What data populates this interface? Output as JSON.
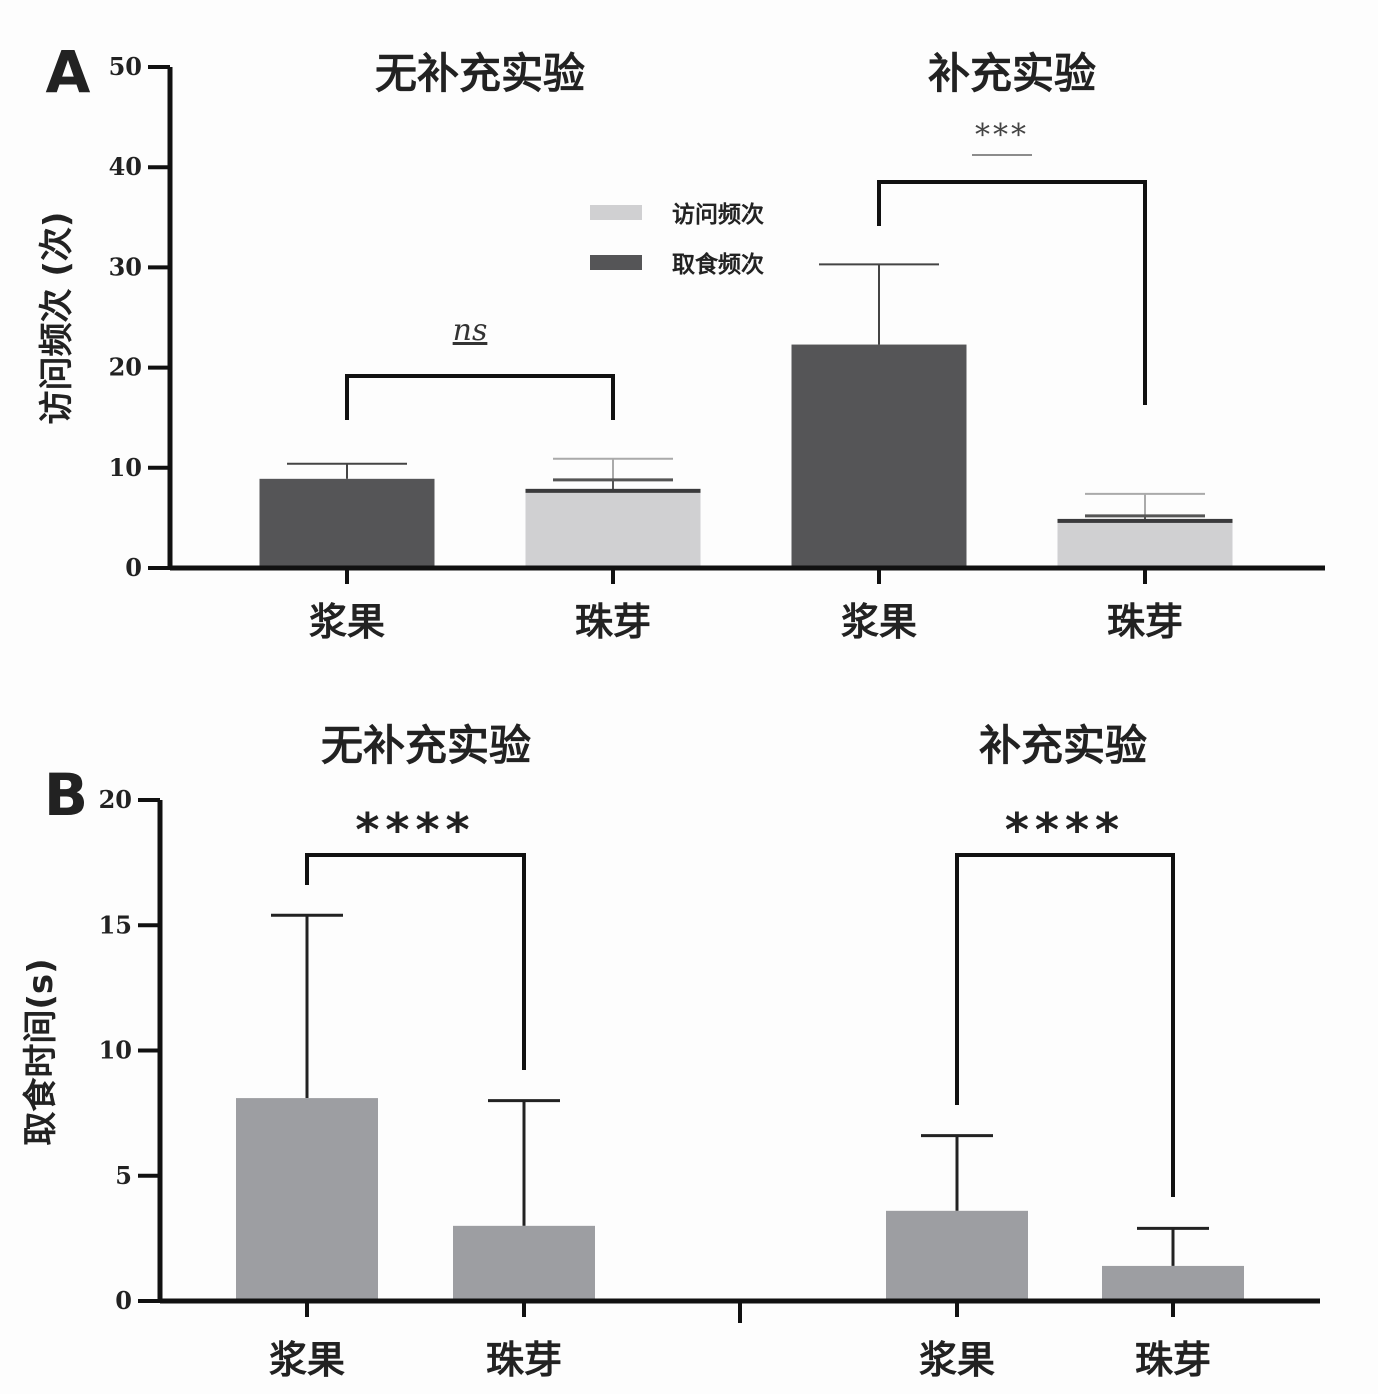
{
  "chart_data": [
    {
      "panel": "A",
      "type": "bar",
      "ylabel": "访问频次 (次)",
      "ylim": [
        0,
        50
      ],
      "yticks": [
        0,
        10,
        20,
        30,
        40,
        50
      ],
      "groups": [
        {
          "title": "无补充实验",
          "categories": [
            "浆果",
            "珠芽"
          ]
        },
        {
          "title": "补充实验",
          "categories": [
            "浆果",
            "珠芽"
          ]
        }
      ],
      "legend": {
        "position": "top-center",
        "entries": [
          {
            "name": "访问频次",
            "color": "#d0d0d2"
          },
          {
            "name": "取食频次",
            "color": "#555557"
          }
        ]
      },
      "series": [
        {
          "name": "访问频次",
          "values": [
            8.9,
            7.8,
            22.3,
            4.8
          ],
          "errors": [
            10.4,
            10.9,
            30.3,
            7.4
          ]
        },
        {
          "name": "取食频次",
          "values": [
            8.9,
            7.7,
            22.3,
            4.7
          ],
          "errors": [
            10.4,
            8.8,
            30.3,
            5.2
          ]
        }
      ],
      "annotations": [
        {
          "between": [
            0,
            1
          ],
          "label": "ns"
        },
        {
          "between": [
            2,
            3
          ],
          "label": "***"
        }
      ]
    },
    {
      "panel": "B",
      "type": "bar",
      "ylabel": "取食时间(s)",
      "ylim": [
        0,
        20
      ],
      "yticks": [
        0,
        5,
        10,
        15,
        20
      ],
      "groups": [
        {
          "title": "无补充实验",
          "categories": [
            "浆果",
            "珠芽"
          ]
        },
        {
          "title": "补充实验",
          "categories": [
            "浆果",
            "珠芽"
          ]
        }
      ],
      "series": [
        {
          "name": "取食时间",
          "color": "#9d9ea2",
          "values": [
            8.1,
            3.0,
            3.6,
            1.4
          ],
          "errors": [
            15.4,
            8.0,
            6.6,
            2.9
          ]
        }
      ],
      "annotations": [
        {
          "between": [
            0,
            1
          ],
          "label": "****"
        },
        {
          "between": [
            2,
            3
          ],
          "label": "****"
        }
      ]
    }
  ]
}
